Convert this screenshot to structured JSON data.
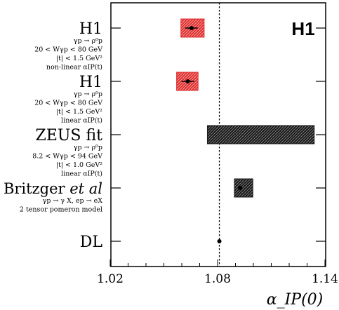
{
  "chart_data": {
    "type": "forest",
    "xlabel": "α_IP(0)",
    "xlim": [
      1.02,
      1.14
    ],
    "xticks": [
      "1.02",
      "1.08",
      "1.14"
    ],
    "reference_line": 1.081,
    "experiment_label": "H1",
    "rows": [
      {
        "name": "H1",
        "lines": [
          "γp → ρ⁰p",
          "20 < Wγp < 80 GeV",
          "|t| < 1.5 GeV²",
          "non-linear αIP(t)"
        ],
        "value": 1.0654,
        "stat_err": 0.0035,
        "box": [
          1.0595,
          1.0725
        ],
        "color": "#e03030",
        "show_point": true
      },
      {
        "name": "H1",
        "lines": [
          "γp → ρ⁰p",
          "20 < Wγp < 80 GeV",
          "|t| < 1.5 GeV²",
          "linear αIP(t)"
        ],
        "value": 1.0634,
        "stat_err": 0.0035,
        "box": [
          1.0571,
          1.0691
        ],
        "color": "#e03030",
        "show_point": true
      },
      {
        "name": "ZEUS fit",
        "lines": [
          "γp → ρ⁰p",
          "8.2 < Wγp < 94 GeV",
          "|t| < 1.0 GeV²",
          "linear αIP(t)"
        ],
        "value": 1.1041,
        "stat_err": 0,
        "box": [
          1.0743,
          1.134
        ],
        "color": "#1a1a1a",
        "show_point": false
      },
      {
        "name": "Britzger et al",
        "lines": [
          "γp → γ X, ep → eX",
          "2 tensor pomeron model"
        ],
        "value": 1.0926,
        "stat_err": 0,
        "box": [
          1.0894,
          1.0997
        ],
        "color": "#1a1a1a",
        "show_point": true
      },
      {
        "name": "DL",
        "lines": [],
        "value": 1.081,
        "stat_err": 0,
        "box": null,
        "color": "#000000",
        "show_point": true
      }
    ]
  }
}
